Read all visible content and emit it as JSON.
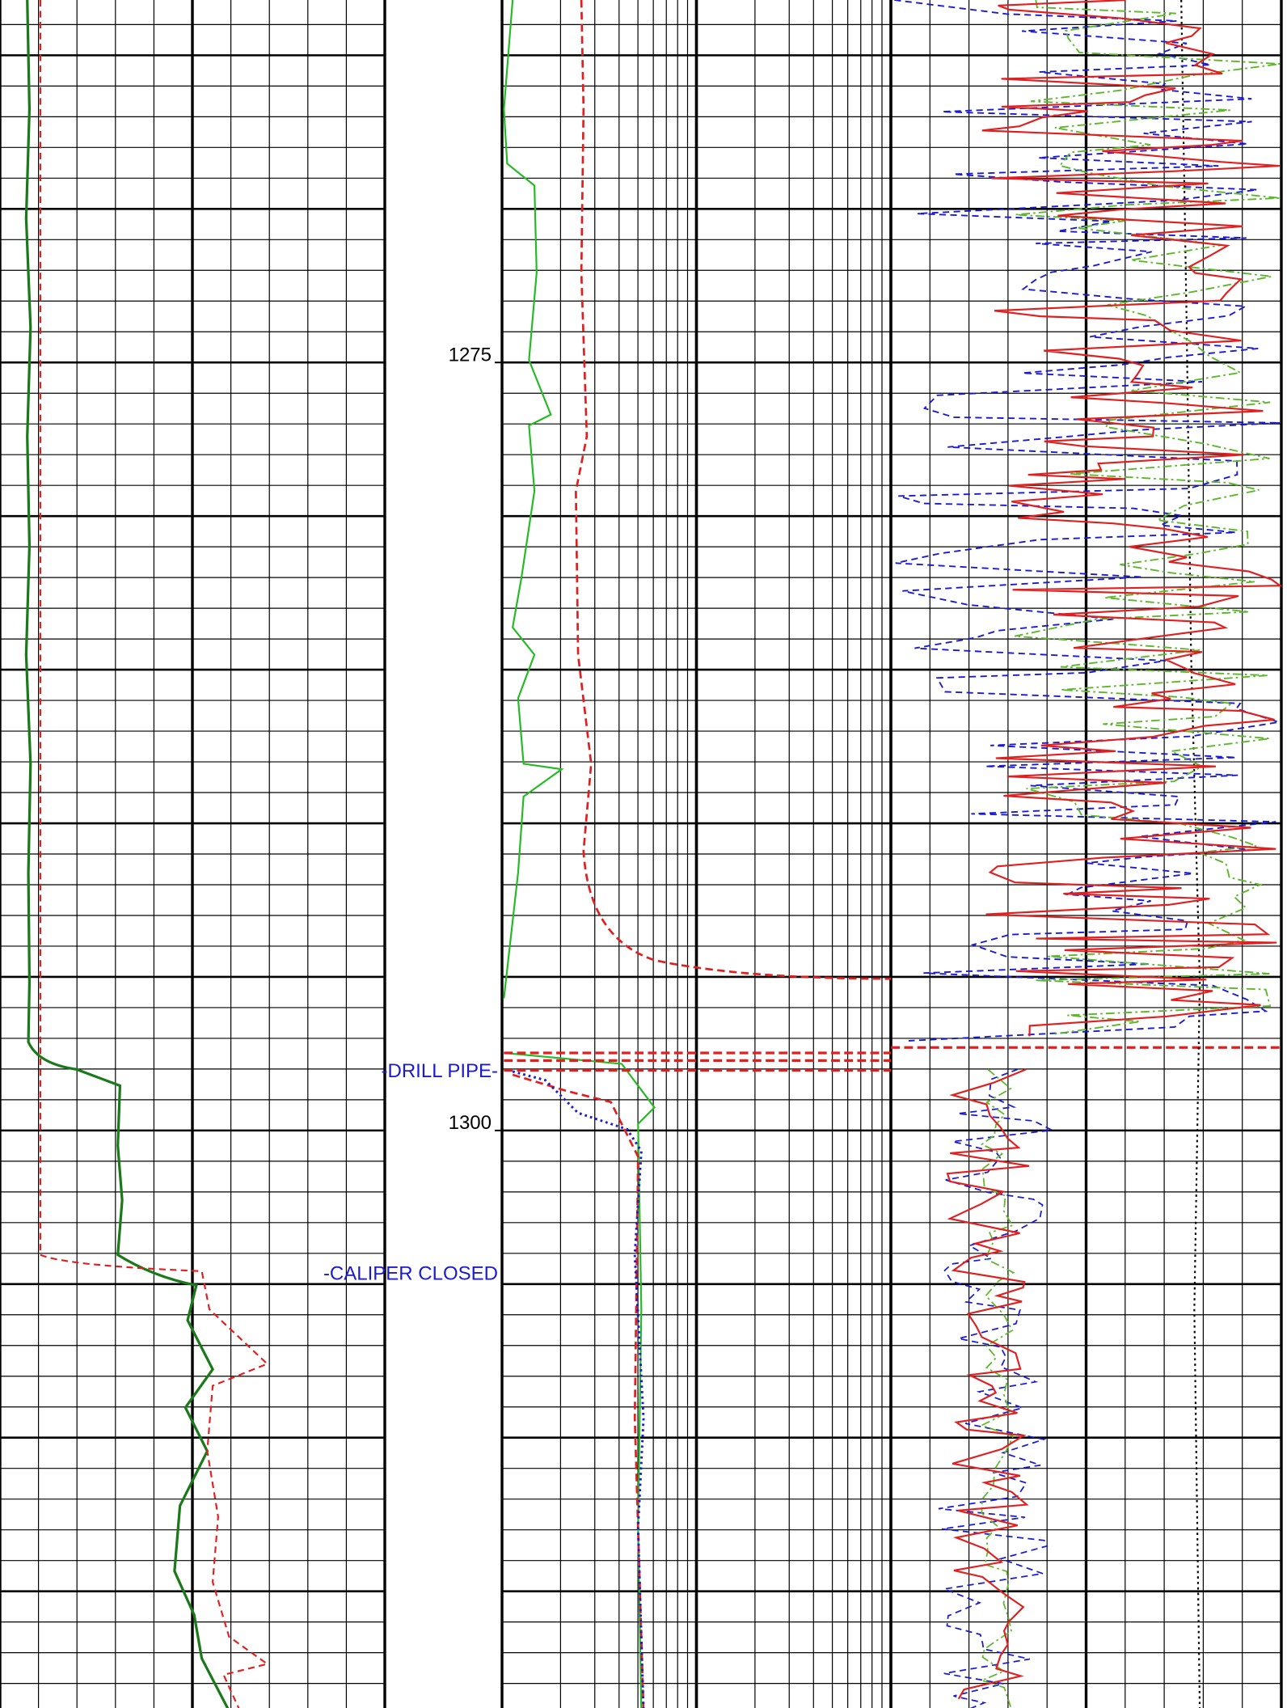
{
  "chart_data": {
    "type": "well-log",
    "ylim": [
      1263.2,
      1318.8
    ],
    "yticks": [
      1275,
      1300
    ],
    "annotations": [
      {
        "text": "-DRILL PIPE-",
        "depth": 1298.1
      },
      {
        "text": "-CALIPER CLOSED",
        "depth": 1304.7
      }
    ]
  }
}
